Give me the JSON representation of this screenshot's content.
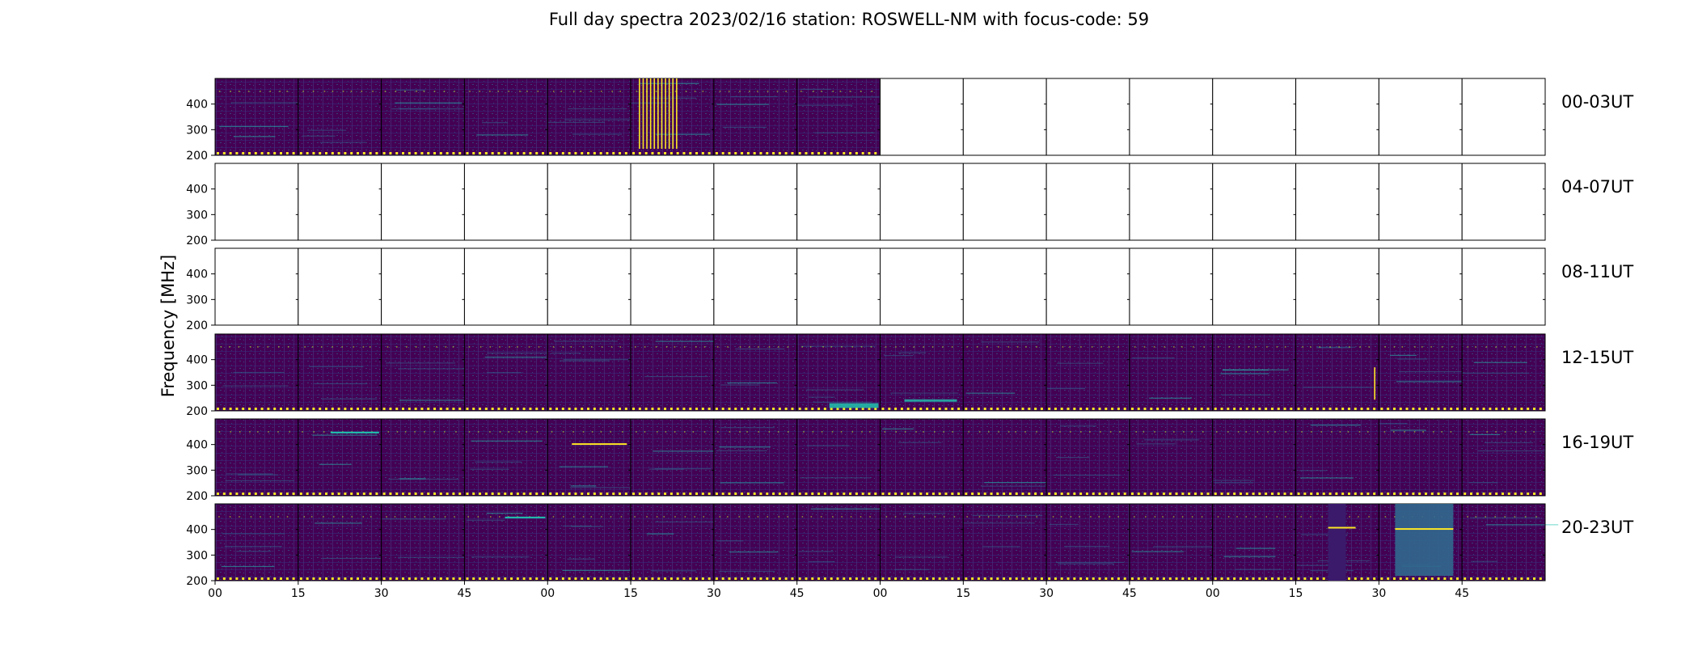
{
  "title": "Full day spectra 2023/02/16 station: ROSWELL-NM with focus-code: 59",
  "chart_data": {
    "type": "heatmap",
    "title": "Full day spectra 2023/02/16 station: ROSWELL-NM with focus-code: 59",
    "ylabel": "Frequency [MHz]",
    "xlabel": "",
    "ylim": [
      200,
      500
    ],
    "y_ticks": [
      "200",
      "300",
      "400"
    ],
    "x_tick_labels": [
      "00",
      "15",
      "30",
      "45",
      "00",
      "15",
      "30",
      "45",
      "00",
      "15",
      "30",
      "45",
      "00",
      "15",
      "30",
      "45"
    ],
    "colormap": "viridis",
    "colors": {
      "background": "#440154",
      "dark": "#3b1a6b",
      "mid": "#3e4a89",
      "teal": "#20c5b0",
      "yellow": "#fde725"
    },
    "rows": [
      {
        "label": "00-03UT",
        "panels_with_data": 8,
        "total_panels": 16
      },
      {
        "label": "04-07UT",
        "panels_with_data": 0,
        "total_panels": 16
      },
      {
        "label": "08-11UT",
        "panels_with_data": 0,
        "total_panels": 16
      },
      {
        "label": "12-15UT",
        "panels_with_data": 16,
        "total_panels": 16
      },
      {
        "label": "16-19UT",
        "panels_with_data": 16,
        "total_panels": 16
      },
      {
        "label": "20-23UT",
        "panels_with_data": 16,
        "total_panels": 16
      }
    ]
  }
}
